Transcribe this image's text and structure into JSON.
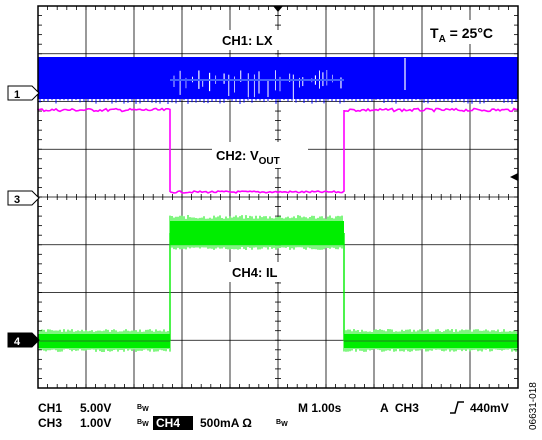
{
  "chart_data": {
    "type": "line",
    "x": [
      0,
      1,
      2,
      3,
      4,
      5,
      6,
      7,
      8,
      9,
      10
    ],
    "series": [
      {
        "name": "CH1: LX",
        "values": [
          1,
          1,
          1,
          1,
          1,
          1,
          1,
          1,
          1,
          1,
          1
        ]
      },
      {
        "name": "CH2: VOUT",
        "values": [
          1,
          1,
          1,
          0,
          0,
          0,
          0,
          1,
          1,
          1,
          1
        ]
      },
      {
        "name": "CH4: IL",
        "values": [
          0,
          0,
          0,
          1,
          1,
          1,
          1,
          0,
          0,
          0,
          0
        ]
      }
    ],
    "annotations": {
      "temp_main": "T",
      "temp_sub": "A",
      "temp_rest": " = 25°C",
      "ch1_label": "CH1: LX",
      "ch2_main": "CH2: V",
      "ch2_sub": "OUT",
      "ch4_label": "CH4: IL",
      "marker1": "1",
      "marker3": "3",
      "marker4": "4",
      "figure_id": "06631-018"
    },
    "readout": {
      "ch1": "CH1",
      "ch1_scale": "5.00V",
      "ch3": "CH3",
      "ch3_scale": "1.00V",
      "bw1": "B",
      "bw2": "B",
      "bw3": "B",
      "bw_sub": "W",
      "ch4": "CH4",
      "ch4_scale": "500mA Ω",
      "timebase": "M 1.00s",
      "trigger": "A  CH3",
      "trigger_level": "440mV"
    },
    "grid": true,
    "colors": {
      "ch1": "#0000ff",
      "ch2": "#ff00ff",
      "ch4": "#00ee00",
      "grid": "#000000"
    }
  }
}
